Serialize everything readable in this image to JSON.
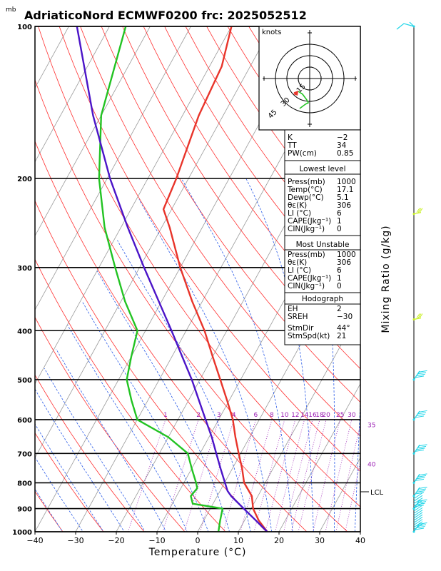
{
  "header": {
    "unit_label": "mb",
    "title": "AdriaticoNord ECMWF0200 frc: 2025052512"
  },
  "axes": {
    "xlabel": "Temperature (°C)",
    "right_label": "Mixing Ratio (g/kg)"
  },
  "colors": {
    "temperature": "#e8342a",
    "dewpoint": "#22c322",
    "parcel": "#4b14c8",
    "isotherm": "#999999",
    "dry_adiabat": "#ff3030",
    "moist_adiabat": "#2a5be8",
    "mixing_ratio": "#9b1fb4",
    "isobar": "#000000",
    "wind_barb_low": "#1fd5e8",
    "wind_barb_mid": "#c8f020"
  },
  "chart_data": {
    "type": "skew-t log-p",
    "title": "AdriaticoNord ECMWF0200 frc: 2025052512",
    "xlabel": "Temperature (°C)",
    "ylabel": "mb",
    "xlim": [
      -40,
      40
    ],
    "ylim": [
      1000,
      100
    ],
    "x_ticks": [
      "−40",
      "−30",
      "−20",
      "−10",
      "0",
      "10",
      "20",
      "30",
      "40"
    ],
    "pressure_ticks": [
      "100",
      "200",
      "300",
      "400",
      "500",
      "600",
      "700",
      "800",
      "900",
      "1000"
    ],
    "series": [
      {
        "name": "Temperature",
        "color": "#e8342a",
        "points": [
          {
            "p": 1000,
            "t": 17.1
          },
          {
            "p": 950,
            "t": 13.5
          },
          {
            "p": 900,
            "t": 10.5
          },
          {
            "p": 850,
            "t": 8.5
          },
          {
            "p": 800,
            "t": 4.8
          },
          {
            "p": 750,
            "t": 2.4
          },
          {
            "p": 700,
            "t": -0.5
          },
          {
            "p": 650,
            "t": -3.5
          },
          {
            "p": 600,
            "t": -6.5
          },
          {
            "p": 550,
            "t": -10.5
          },
          {
            "p": 500,
            "t": -15.0
          },
          {
            "p": 450,
            "t": -20.0
          },
          {
            "p": 400,
            "t": -25.5
          },
          {
            "p": 350,
            "t": -32.5
          },
          {
            "p": 300,
            "t": -40.0
          },
          {
            "p": 250,
            "t": -48.0
          },
          {
            "p": 230,
            "t": -52.0
          },
          {
            "p": 200,
            "t": -53.0
          },
          {
            "p": 150,
            "t": -56.0
          },
          {
            "p": 120,
            "t": -57.0
          },
          {
            "p": 100,
            "t": -60.0
          }
        ]
      },
      {
        "name": "Dewpoint",
        "color": "#22c322",
        "points": [
          {
            "p": 1000,
            "t": 5.1
          },
          {
            "p": 950,
            "t": 4.0
          },
          {
            "p": 900,
            "t": 3.0
          },
          {
            "p": 880,
            "t": -5.0
          },
          {
            "p": 850,
            "t": -6.5
          },
          {
            "p": 820,
            "t": -6.0
          },
          {
            "p": 800,
            "t": -7.0
          },
          {
            "p": 750,
            "t": -10.0
          },
          {
            "p": 700,
            "t": -13.0
          },
          {
            "p": 650,
            "t": -20.0
          },
          {
            "p": 600,
            "t": -30.0
          },
          {
            "p": 550,
            "t": -34.0
          },
          {
            "p": 500,
            "t": -38.0
          },
          {
            "p": 450,
            "t": -40.0
          },
          {
            "p": 400,
            "t": -42.0
          },
          {
            "p": 350,
            "t": -49.0
          },
          {
            "p": 300,
            "t": -56.0
          },
          {
            "p": 250,
            "t": -64.0
          },
          {
            "p": 200,
            "t": -72.0
          },
          {
            "p": 150,
            "t": -80.0
          },
          {
            "p": 100,
            "t": -86.0
          }
        ]
      },
      {
        "name": "Parcel",
        "color": "#4b14c8",
        "points": [
          {
            "p": 1000,
            "t": 17.1
          },
          {
            "p": 950,
            "t": 12.8
          },
          {
            "p": 900,
            "t": 8.2
          },
          {
            "p": 850,
            "t": 3.4
          },
          {
            "p": 830,
            "t": 1.8
          },
          {
            "p": 800,
            "t": 0.1
          },
          {
            "p": 750,
            "t": -2.9
          },
          {
            "p": 700,
            "t": -6.0
          },
          {
            "p": 650,
            "t": -9.3
          },
          {
            "p": 600,
            "t": -13.2
          },
          {
            "p": 550,
            "t": -17.4
          },
          {
            "p": 500,
            "t": -22.0
          },
          {
            "p": 450,
            "t": -27.5
          },
          {
            "p": 400,
            "t": -33.6
          },
          {
            "p": 350,
            "t": -40.7
          },
          {
            "p": 300,
            "t": -48.9
          },
          {
            "p": 250,
            "t": -58.3
          },
          {
            "p": 200,
            "t": -69.3
          },
          {
            "p": 150,
            "t": -82.0
          },
          {
            "p": 100,
            "t": -98.0
          }
        ]
      }
    ],
    "mixing_ratio_labels": [
      "1",
      "2",
      "3",
      "4",
      "6",
      "8",
      "10",
      "12",
      "14",
      "16",
      "18",
      "20",
      "25",
      "30",
      "35",
      "40"
    ],
    "lcl_label": "LCL",
    "lcl_pressure": 840,
    "wind_barbs": [
      {
        "p": 100,
        "kind": "half-flag-long",
        "color": "#1fd5e8"
      },
      {
        "p": 235,
        "kind": "mixed",
        "color": "#c8f020"
      },
      {
        "p": 380,
        "kind": "mixed",
        "color": "#c8f020"
      },
      {
        "p": 500,
        "kind": "flags",
        "color": "#1fd5e8"
      },
      {
        "p": 600,
        "kind": "flags",
        "color": "#1fd5e8"
      },
      {
        "p": 700,
        "kind": "flags",
        "color": "#1fd5e8"
      },
      {
        "p": 800,
        "kind": "flags",
        "color": "#1fd5e8"
      },
      {
        "p": 850,
        "kind": "flags",
        "color": "#1fd5e8"
      },
      {
        "p": 900,
        "kind": "flags",
        "color": "#1fd5e8"
      },
      {
        "p": 1000,
        "kind": "flags",
        "color": "#1fd5e8"
      }
    ],
    "hodograph": {
      "units_label": "knots",
      "ring_labels": [
        "15",
        "30",
        "45"
      ]
    }
  },
  "indices": {
    "top": [
      {
        "label": "K",
        "value": "−2"
      },
      {
        "label": "TT",
        "value": "34"
      },
      {
        "label": "PW(cm)",
        "value": "0.85"
      }
    ],
    "lowest_level": {
      "title": "Lowest level",
      "rows": [
        {
          "label": "Press(mb)",
          "value": "1000"
        },
        {
          "label": "Temp(°C)",
          "value": "17.1"
        },
        {
          "label": "Dewp(°C)",
          "value": "5.1"
        },
        {
          "label": "θε(K)",
          "value": "306"
        },
        {
          "label": "LI (°C)",
          "value": "6"
        },
        {
          "label": "CAPE(Jkg⁻¹)",
          "value": "1"
        },
        {
          "label": "CIN(Jkg⁻¹)",
          "value": "0"
        }
      ]
    },
    "most_unstable": {
      "title": "Most Unstable",
      "rows": [
        {
          "label": "Press(mb)",
          "value": "1000"
        },
        {
          "label": "θε(K)",
          "value": "306"
        },
        {
          "label": "LI (°C)",
          "value": "6"
        },
        {
          "label": "CAPE(Jkg⁻¹)",
          "value": "1"
        },
        {
          "label": "CIN(Jkg⁻¹)",
          "value": "0"
        }
      ]
    },
    "hodograph": {
      "title": "Hodograph",
      "rows": [
        {
          "label": "EH",
          "value": "2"
        },
        {
          "label": "SREH",
          "value": "−30"
        },
        {
          "label": "StmDir",
          "value": "44°"
        },
        {
          "label": "StmSpd(kt)",
          "value": "21"
        }
      ]
    }
  }
}
